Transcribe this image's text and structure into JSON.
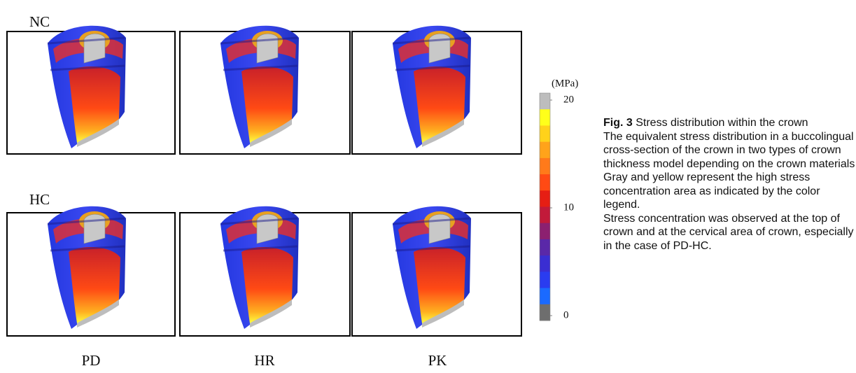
{
  "rows": [
    {
      "label": "NC"
    },
    {
      "label": "HC"
    }
  ],
  "columns": [
    "PD",
    "HR",
    "PK"
  ],
  "legend": {
    "unit": "(MPa)",
    "lim": [
      0,
      20
    ],
    "ticks": [
      20,
      10,
      0
    ],
    "colors": [
      "#bdbdbd",
      "#ffff1a",
      "#ffd21a",
      "#ffa31a",
      "#ff7a1a",
      "#ff4a14",
      "#e61e14",
      "#c21a3a",
      "#8c2070",
      "#5a28a8",
      "#3a2ed2",
      "#2a3cf0",
      "#1a6aff",
      "#6e6e6e"
    ]
  },
  "caption": {
    "label": "Fig. 3",
    "title": "Stress distribution within the crown",
    "paragraphs": [
      "The equivalent stress distribution in a buccolingual cross-section of the crown in two types of crown thickness model depending on the crown materials",
      "Gray and yellow represent the high stress concentration area as indicated by the color legend.",
      "Stress concentration was observed at the top of crown and at the cervical area of crown, especially in the case of PD-HC."
    ]
  }
}
